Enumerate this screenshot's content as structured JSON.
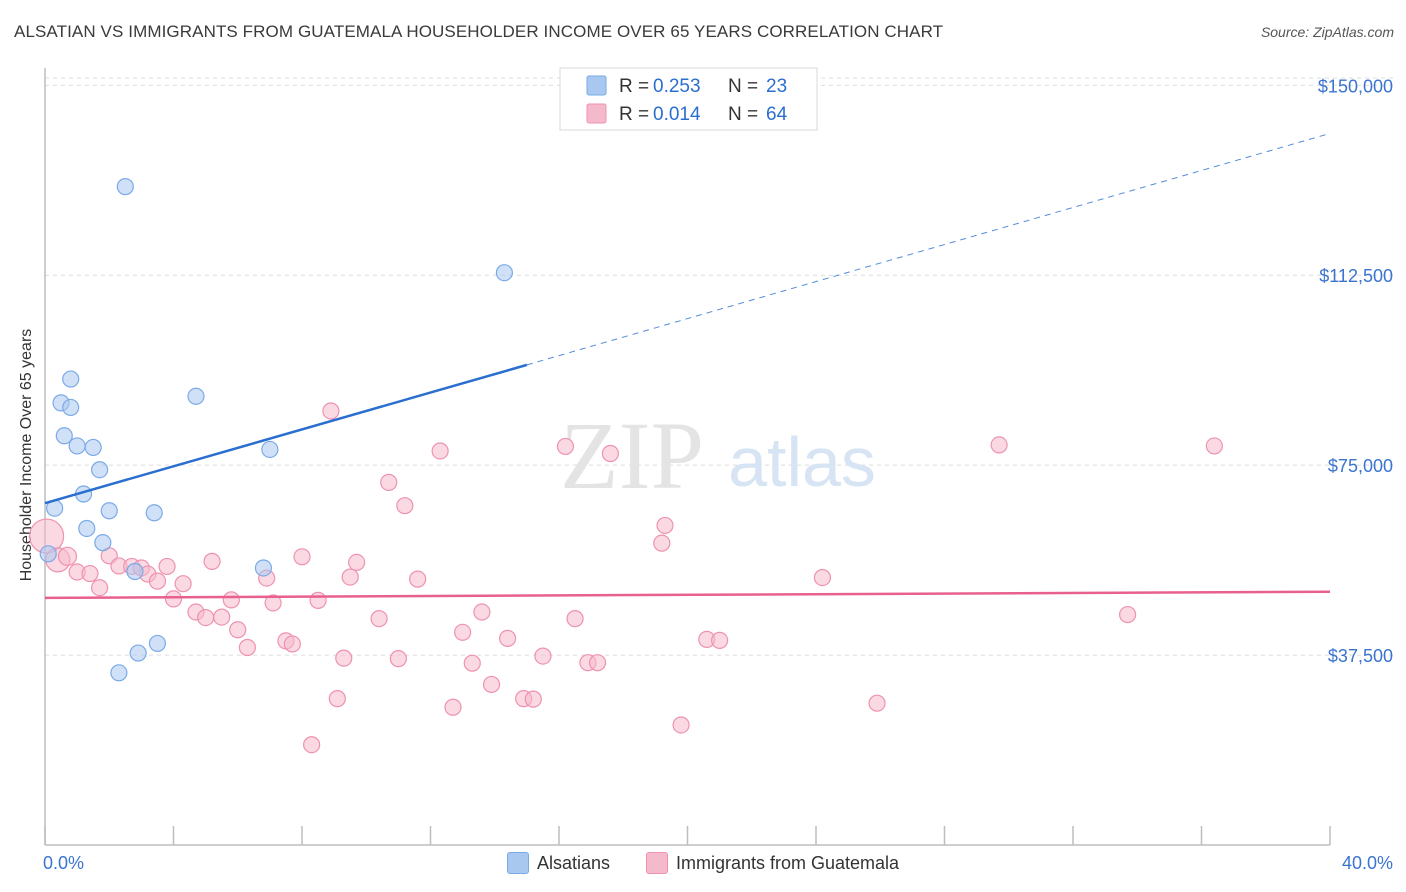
{
  "title": "ALSATIAN VS IMMIGRANTS FROM GUATEMALA HOUSEHOLDER INCOME OVER 65 YEARS CORRELATION CHART",
  "source": "Source: ZipAtlas.com",
  "watermark": {
    "zip": "ZIP",
    "atlas": "atlas"
  },
  "legend_top": {
    "rows": [
      {
        "r_label": "R = ",
        "r_value": "0.253",
        "n_label": "N = ",
        "n_value": "23",
        "color": "#a9c8f0"
      },
      {
        "r_label": "R = ",
        "r_value": "0.014",
        "n_label": "N = ",
        "n_value": "64",
        "color": "#f5b9cc"
      }
    ]
  },
  "legend_bottom": [
    {
      "label": "Alsatians",
      "color": "#a9c8f0"
    },
    {
      "label": "Immigrants from Guatemala",
      "color": "#f5b9cc"
    }
  ],
  "chart_data": {
    "type": "scatter",
    "xlabel": "",
    "ylabel": "Householder Income Over 65 years",
    "xlim": [
      0,
      40
    ],
    "ylim": [
      0,
      155000
    ],
    "x_tick_labels": [
      {
        "value": 0,
        "label": "0.0%"
      },
      {
        "value": 40,
        "label": "40.0%"
      }
    ],
    "y_ticks": [
      {
        "value": 37500,
        "label": "$37,500"
      },
      {
        "value": 75000,
        "label": "$75,000"
      },
      {
        "value": 112500,
        "label": "$112,500"
      },
      {
        "value": 150000,
        "label": "$150,000"
      }
    ],
    "grid": true,
    "series": [
      {
        "name": "Alsatians",
        "color": "#7aaae8",
        "fill": "#a9c8f0",
        "trend": {
          "x0": 0,
          "y0": 67500,
          "x1": 15,
          "y1": 94800,
          "x_ext": 40,
          "y_ext": 140500,
          "line_color": "#2a6fcf"
        },
        "points": [
          {
            "x": 0.1,
            "y": 57500,
            "s": 8
          },
          {
            "x": 0.3,
            "y": 66500,
            "s": 8
          },
          {
            "x": 0.5,
            "y": 87300,
            "s": 8
          },
          {
            "x": 0.6,
            "y": 80800,
            "s": 8
          },
          {
            "x": 0.8,
            "y": 92000,
            "s": 8
          },
          {
            "x": 0.8,
            "y": 86400,
            "s": 8
          },
          {
            "x": 1.0,
            "y": 78800,
            "s": 8
          },
          {
            "x": 1.2,
            "y": 69300,
            "s": 8
          },
          {
            "x": 1.3,
            "y": 62500,
            "s": 8
          },
          {
            "x": 1.5,
            "y": 78500,
            "s": 8
          },
          {
            "x": 1.7,
            "y": 74100,
            "s": 8
          },
          {
            "x": 1.8,
            "y": 59700,
            "s": 8
          },
          {
            "x": 2.0,
            "y": 66000,
            "s": 8
          },
          {
            "x": 2.3,
            "y": 34000,
            "s": 8
          },
          {
            "x": 2.5,
            "y": 130000,
            "s": 8
          },
          {
            "x": 2.8,
            "y": 54000,
            "s": 8
          },
          {
            "x": 2.9,
            "y": 37900,
            "s": 8
          },
          {
            "x": 3.4,
            "y": 65600,
            "s": 8
          },
          {
            "x": 3.5,
            "y": 39800,
            "s": 8
          },
          {
            "x": 4.7,
            "y": 88600,
            "s": 8
          },
          {
            "x": 6.8,
            "y": 54700,
            "s": 8
          },
          {
            "x": 7.0,
            "y": 78100,
            "s": 8
          },
          {
            "x": 14.3,
            "y": 113000,
            "s": 8
          }
        ]
      },
      {
        "name": "Immigrants from Guatemala",
        "color": "#ee92b0",
        "fill": "#f5b9cc",
        "trend": {
          "x0": 0,
          "y0": 48800,
          "x1": 40,
          "y1": 50000,
          "line_color": "#e8608e"
        },
        "points": [
          {
            "x": 0.05,
            "y": 61000,
            "s": 17
          },
          {
            "x": 0.4,
            "y": 56300,
            "s": 12
          },
          {
            "x": 0.7,
            "y": 57000,
            "s": 9
          },
          {
            "x": 1.0,
            "y": 53900,
            "s": 8
          },
          {
            "x": 1.4,
            "y": 53600,
            "s": 8
          },
          {
            "x": 1.7,
            "y": 50800,
            "s": 8
          },
          {
            "x": 2.0,
            "y": 57100,
            "s": 8
          },
          {
            "x": 2.3,
            "y": 55100,
            "s": 8
          },
          {
            "x": 2.7,
            "y": 55000,
            "s": 8
          },
          {
            "x": 3.0,
            "y": 54700,
            "s": 8
          },
          {
            "x": 3.2,
            "y": 53500,
            "s": 8
          },
          {
            "x": 3.5,
            "y": 52100,
            "s": 8
          },
          {
            "x": 3.8,
            "y": 55000,
            "s": 8
          },
          {
            "x": 4.0,
            "y": 48600,
            "s": 8
          },
          {
            "x": 4.3,
            "y": 51600,
            "s": 8
          },
          {
            "x": 4.7,
            "y": 46000,
            "s": 8
          },
          {
            "x": 5.0,
            "y": 44900,
            "s": 8
          },
          {
            "x": 5.2,
            "y": 56000,
            "s": 8
          },
          {
            "x": 5.5,
            "y": 45000,
            "s": 8
          },
          {
            "x": 5.8,
            "y": 48400,
            "s": 8
          },
          {
            "x": 6.0,
            "y": 42500,
            "s": 8
          },
          {
            "x": 6.3,
            "y": 39000,
            "s": 8
          },
          {
            "x": 6.9,
            "y": 52700,
            "s": 8
          },
          {
            "x": 7.1,
            "y": 47800,
            "s": 8
          },
          {
            "x": 7.5,
            "y": 40300,
            "s": 8
          },
          {
            "x": 7.7,
            "y": 39700,
            "s": 8
          },
          {
            "x": 8.0,
            "y": 56900,
            "s": 8
          },
          {
            "x": 8.3,
            "y": 19800,
            "s": 8
          },
          {
            "x": 8.5,
            "y": 48300,
            "s": 8
          },
          {
            "x": 8.9,
            "y": 85700,
            "s": 8
          },
          {
            "x": 9.1,
            "y": 28900,
            "s": 8
          },
          {
            "x": 9.3,
            "y": 36900,
            "s": 8
          },
          {
            "x": 9.5,
            "y": 52900,
            "s": 8
          },
          {
            "x": 9.7,
            "y": 55800,
            "s": 8
          },
          {
            "x": 10.4,
            "y": 44700,
            "s": 8
          },
          {
            "x": 10.7,
            "y": 71600,
            "s": 8
          },
          {
            "x": 11.0,
            "y": 36800,
            "s": 8
          },
          {
            "x": 11.2,
            "y": 67000,
            "s": 8
          },
          {
            "x": 11.6,
            "y": 52500,
            "s": 8
          },
          {
            "x": 12.3,
            "y": 77800,
            "s": 8
          },
          {
            "x": 12.7,
            "y": 27200,
            "s": 8
          },
          {
            "x": 13.0,
            "y": 42000,
            "s": 8
          },
          {
            "x": 13.3,
            "y": 35900,
            "s": 8
          },
          {
            "x": 13.6,
            "y": 46000,
            "s": 8
          },
          {
            "x": 13.9,
            "y": 31700,
            "s": 8
          },
          {
            "x": 14.4,
            "y": 40800,
            "s": 8
          },
          {
            "x": 14.9,
            "y": 28900,
            "s": 8
          },
          {
            "x": 15.2,
            "y": 28800,
            "s": 8
          },
          {
            "x": 15.5,
            "y": 37300,
            "s": 8
          },
          {
            "x": 16.2,
            "y": 78700,
            "s": 8
          },
          {
            "x": 16.5,
            "y": 44700,
            "s": 8
          },
          {
            "x": 16.9,
            "y": 36000,
            "s": 8
          },
          {
            "x": 17.2,
            "y": 36000,
            "s": 8
          },
          {
            "x": 17.6,
            "y": 77300,
            "s": 8
          },
          {
            "x": 19.2,
            "y": 59600,
            "s": 8
          },
          {
            "x": 19.3,
            "y": 63100,
            "s": 8
          },
          {
            "x": 19.8,
            "y": 23700,
            "s": 8
          },
          {
            "x": 20.6,
            "y": 40600,
            "s": 8
          },
          {
            "x": 21.0,
            "y": 40400,
            "s": 8
          },
          {
            "x": 24.2,
            "y": 52800,
            "s": 8
          },
          {
            "x": 25.9,
            "y": 28000,
            "s": 8
          },
          {
            "x": 29.7,
            "y": 79000,
            "s": 8
          },
          {
            "x": 33.7,
            "y": 45500,
            "s": 8
          },
          {
            "x": 36.4,
            "y": 78800,
            "s": 8
          }
        ]
      }
    ]
  }
}
